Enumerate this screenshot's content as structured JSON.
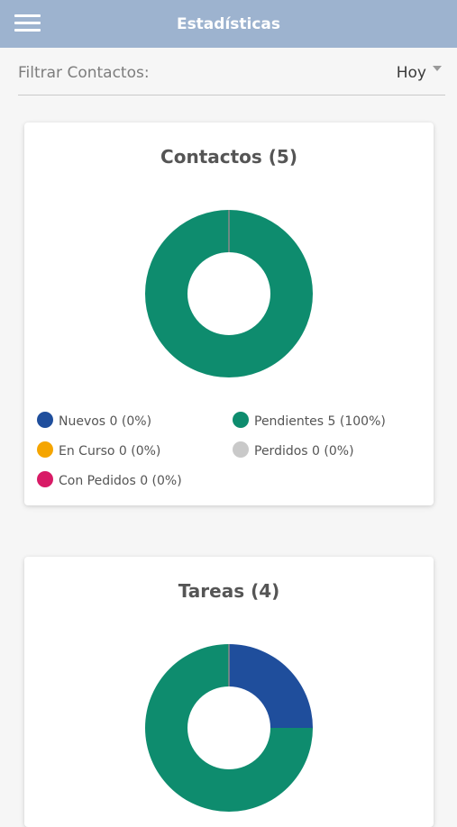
{
  "appbar": {
    "title": "Estadísticas",
    "menu_icon": "menu-icon",
    "color": "#9db3cf"
  },
  "filter": {
    "label": "Filtrar Contactos:",
    "selected": "Hoy",
    "dropdown_icon": "caret-down-icon"
  },
  "contacts": {
    "title": "Contactos (5)",
    "legend": [
      {
        "label": "Nuevos 0 (0%)",
        "color": "#1f4e9c"
      },
      {
        "label": "Pendientes 5 (100%)",
        "color": "#0e8c6e"
      },
      {
        "label": "En Curso 0 (0%)",
        "color": "#f5a500"
      },
      {
        "label": "Perdidos 0 (0%)",
        "color": "#c9c9c9"
      },
      {
        "label": "Con Pedidos 0 (0%)",
        "color": "#d81b66"
      }
    ]
  },
  "tasks": {
    "title": "Tareas (4)"
  },
  "chart_data": [
    {
      "type": "pie",
      "title": "Contactos (5)",
      "categories": [
        "Nuevos",
        "Pendientes",
        "En Curso",
        "Perdidos",
        "Con Pedidos"
      ],
      "values": [
        0,
        5,
        0,
        0,
        0
      ],
      "colors": [
        "#1f4e9c",
        "#0e8c6e",
        "#f5a500",
        "#c9c9c9",
        "#d81b66"
      ],
      "legend": "bottom"
    },
    {
      "type": "pie",
      "title": "Tareas (4)",
      "values": [
        1,
        3
      ],
      "colors": [
        "#1f4e9c",
        "#0e8c6e"
      ]
    }
  ]
}
